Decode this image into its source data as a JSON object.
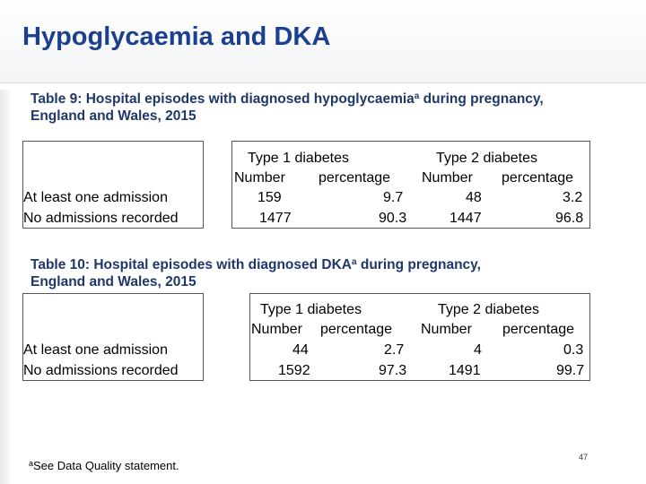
{
  "slide": {
    "title": "Hypoglycaemia and DKA",
    "page_number": "47"
  },
  "table9": {
    "caption_line1_pre": "Table 9: Hospital episodes with diagnosed hypoglycaemia",
    "caption_sup": "a",
    "caption_line1_post": " during pregnancy,",
    "caption_line2": "England and Wales, 2015",
    "group_headers": [
      "Type 1 diabetes",
      "Type 2 diabetes"
    ],
    "sub_headers": [
      "Number",
      "percentage",
      "Number",
      "percentage"
    ],
    "rows": [
      {
        "label": "At least one admission",
        "values": [
          "159",
          "9.7",
          "48",
          "3.2"
        ]
      },
      {
        "label": "No admissions recorded",
        "values": [
          "1477",
          "90.3",
          "1447",
          "96.8"
        ]
      }
    ]
  },
  "table10": {
    "caption_line1_pre": "Table 10: Hospital episodes with diagnosed DKA",
    "caption_sup": "a",
    "caption_line1_post": " during pregnancy,",
    "caption_line2": "England and Wales, 2015",
    "group_headers": [
      "Type 1 diabetes",
      "Type 2 diabetes"
    ],
    "sub_headers": [
      "Number",
      "percentage",
      "Number",
      "percentage"
    ],
    "rows": [
      {
        "label": "At least one admission",
        "values": [
          "44",
          "2.7",
          "4",
          "0.3"
        ]
      },
      {
        "label": "No admissions recorded",
        "values": [
          "1592",
          "97.3",
          "1491",
          "99.7"
        ]
      }
    ]
  },
  "footnote": {
    "sup": "a",
    "text": "See Data Quality statement."
  }
}
